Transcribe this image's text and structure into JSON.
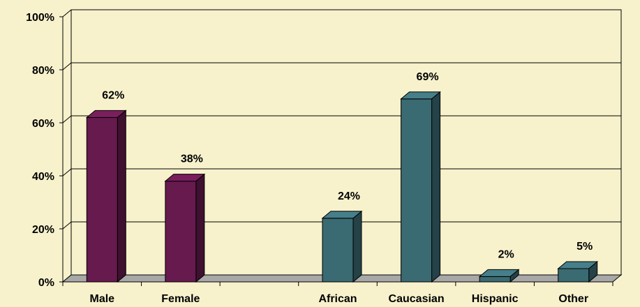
{
  "chart_data": {
    "type": "bar",
    "title": "",
    "xlabel": "",
    "ylabel": "",
    "ylim": [
      0,
      100
    ],
    "y_ticks": [
      "0%",
      "20%",
      "40%",
      "60%",
      "80%",
      "100%"
    ],
    "grid": "horizontal",
    "legend": "none",
    "bars_3d": true,
    "categories": [
      "Male",
      "Female",
      "",
      "African",
      "Caucasian",
      "Hispanic",
      "Other"
    ],
    "values": [
      62,
      38,
      null,
      24,
      69,
      2,
      5
    ],
    "data_labels": [
      "62%",
      "38%",
      "",
      "24%",
      "69%",
      "2%",
      "5%"
    ],
    "bar_groups": [
      "gender",
      "gender",
      "",
      "race",
      "race",
      "race",
      "race"
    ],
    "colors": {
      "background": "#f7f2cc",
      "plot_background": "#f7f2cc",
      "gender_bar": "#661a4d",
      "race_bar": "#3a6a72",
      "floor": "#a8a8a8",
      "grid": "#000000"
    }
  }
}
